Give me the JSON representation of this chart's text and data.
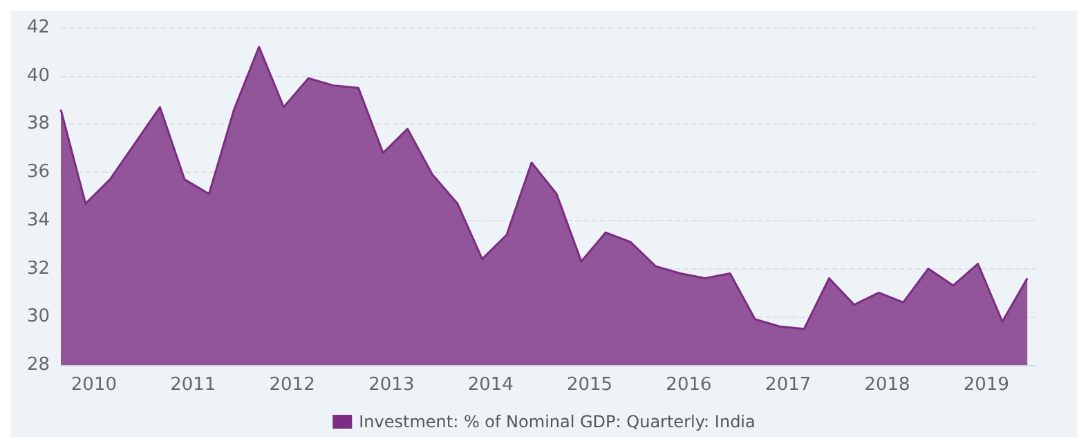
{
  "chart_data": {
    "type": "area",
    "x": [
      "2009-09",
      "2009-12",
      "2010-03",
      "2010-06",
      "2010-09",
      "2010-12",
      "2011-03",
      "2011-06",
      "2011-09",
      "2011-12",
      "2012-03",
      "2012-06",
      "2012-09",
      "2012-12",
      "2013-03",
      "2013-06",
      "2013-09",
      "2013-12",
      "2014-03",
      "2014-06",
      "2014-09",
      "2014-12",
      "2015-03",
      "2015-06",
      "2015-09",
      "2015-12",
      "2016-03",
      "2016-06",
      "2016-09",
      "2016-12",
      "2017-03",
      "2017-06",
      "2017-09",
      "2017-12",
      "2018-03",
      "2018-06",
      "2018-09",
      "2018-12",
      "2019-03",
      "2019-06"
    ],
    "series": [
      {
        "name": "Investment: % of Nominal GDP: Quarterly: India",
        "color": "#7b2d82",
        "values": [
          38.6,
          34.7,
          35.7,
          37.2,
          38.7,
          35.7,
          35.1,
          38.6,
          41.2,
          38.7,
          39.9,
          39.6,
          39.5,
          36.8,
          37.8,
          35.9,
          34.7,
          32.4,
          33.4,
          36.4,
          35.1,
          32.3,
          33.5,
          33.1,
          32.1,
          31.8,
          31.6,
          31.8,
          29.9,
          29.6,
          29.5,
          31.6,
          30.5,
          31.0,
          30.6,
          32.0,
          31.3,
          32.2,
          29.8,
          31.6
        ]
      }
    ],
    "xlim": [
      "2009-09",
      "2019-07"
    ],
    "xticks": [
      "2010",
      "2011",
      "2012",
      "2013",
      "2014",
      "2015",
      "2016",
      "2017",
      "2018",
      "2019"
    ],
    "ylim": [
      28,
      42
    ],
    "yticks": [
      28,
      30,
      32,
      34,
      36,
      38,
      40,
      42
    ],
    "grid": "y",
    "legend": "bottom",
    "marker": "none"
  }
}
